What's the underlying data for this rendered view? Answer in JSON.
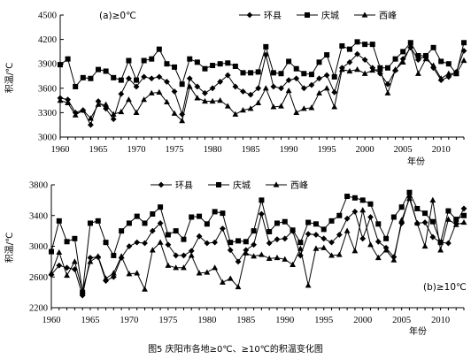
{
  "figure": {
    "caption": "图5 庆阳市各地≥0℃、≥10℃的积温变化图"
  },
  "chart_data": [
    {
      "type": "line",
      "panel_label": "(a)≥0℃",
      "ylabel": "积温/℃",
      "xlabel": "年份",
      "ylim": [
        3000,
        4500
      ],
      "yticks": [
        3000,
        3300,
        3600,
        3900,
        4200,
        4500
      ],
      "xlim": [
        1960,
        2013
      ],
      "xticks": [
        1960,
        1965,
        1970,
        1975,
        1980,
        1985,
        1990,
        1995,
        2000,
        2005,
        2010
      ],
      "legend_position": "top-right",
      "x": [
        1960,
        1961,
        1962,
        1963,
        1964,
        1965,
        1966,
        1967,
        1968,
        1969,
        1970,
        1971,
        1972,
        1973,
        1974,
        1975,
        1976,
        1977,
        1978,
        1979,
        1980,
        1981,
        1982,
        1983,
        1984,
        1985,
        1986,
        1987,
        1988,
        1989,
        1990,
        1991,
        1992,
        1993,
        1994,
        1995,
        1996,
        1997,
        1998,
        1999,
        2000,
        2001,
        2002,
        2003,
        2004,
        2005,
        2006,
        2007,
        2008,
        2009,
        2010,
        2011,
        2012,
        2013
      ],
      "series": [
        {
          "name": "环县",
          "marker": "diamond",
          "values": [
            3480,
            3460,
            3300,
            3330,
            3150,
            3440,
            3350,
            3220,
            3530,
            3720,
            3620,
            3740,
            3720,
            3740,
            3680,
            3560,
            3280,
            3720,
            3620,
            3540,
            3600,
            3680,
            3760,
            3620,
            3560,
            3520,
            3600,
            4010,
            3620,
            3600,
            3700,
            3720,
            3600,
            3640,
            3720,
            3760,
            3550,
            3850,
            3920,
            4020,
            3950,
            3850,
            3780,
            3650,
            3820,
            3960,
            4100,
            3950,
            4000,
            3850,
            3700,
            3740,
            3800,
            4060
          ]
        },
        {
          "name": "庆城",
          "marker": "square",
          "values": [
            3890,
            3960,
            3620,
            3730,
            3720,
            3830,
            3810,
            3730,
            3700,
            3940,
            3700,
            3940,
            3960,
            4080,
            3900,
            3860,
            3650,
            3960,
            3920,
            3840,
            3880,
            3900,
            3910,
            3870,
            3790,
            3790,
            3800,
            4110,
            3790,
            3780,
            3930,
            3840,
            3780,
            3770,
            3920,
            4010,
            3740,
            4120,
            4080,
            4170,
            4140,
            4140,
            3850,
            3850,
            3960,
            4050,
            4160,
            4000,
            4000,
            4100,
            3930,
            3900,
            3780,
            4160
          ]
        },
        {
          "name": "西峰",
          "marker": "triangle",
          "values": [
            3450,
            3420,
            3270,
            3330,
            3230,
            3400,
            3400,
            3280,
            3310,
            3460,
            3300,
            3460,
            3540,
            3550,
            3430,
            3290,
            3200,
            3620,
            3480,
            3440,
            3440,
            3450,
            3380,
            3280,
            3330,
            3350,
            3420,
            3600,
            3370,
            3380,
            3570,
            3300,
            3350,
            3360,
            3540,
            3600,
            3370,
            3830,
            3810,
            3830,
            3780,
            3820,
            3830,
            3540,
            3830,
            3920,
            4120,
            3780,
            3960,
            3880,
            3720,
            3780,
            3780,
            3940
          ]
        }
      ]
    },
    {
      "type": "line",
      "panel_label": "(b)≥10℃",
      "ylabel": "积温/℃",
      "xlabel": "年份",
      "ylim": [
        2200,
        3800
      ],
      "yticks": [
        2200,
        2600,
        3000,
        3400,
        3800
      ],
      "xlim": [
        1960,
        2013
      ],
      "xticks": [
        1960,
        1965,
        1970,
        1975,
        1980,
        1985,
        1990,
        1995,
        2000,
        2005,
        2010
      ],
      "legend_position": "top-left",
      "x": [
        1960,
        1961,
        1962,
        1963,
        1964,
        1965,
        1966,
        1967,
        1968,
        1969,
        1970,
        1971,
        1972,
        1973,
        1974,
        1975,
        1976,
        1977,
        1978,
        1979,
        1980,
        1981,
        1982,
        1983,
        1984,
        1985,
        1986,
        1987,
        1988,
        1989,
        1990,
        1991,
        1992,
        1993,
        1994,
        1995,
        1996,
        1997,
        1998,
        1999,
        2000,
        2001,
        2002,
        2003,
        2004,
        2005,
        2006,
        2007,
        2008,
        2009,
        2010,
        2011,
        2012,
        2013
      ],
      "series": [
        {
          "name": "环县",
          "marker": "diamond",
          "values": [
            2630,
            2750,
            2720,
            2700,
            2360,
            2850,
            2860,
            2550,
            2600,
            2850,
            3000,
            3050,
            3040,
            3200,
            3300,
            3020,
            2880,
            2880,
            2940,
            3130,
            3040,
            3050,
            3230,
            2950,
            2800,
            2950,
            3020,
            3420,
            3040,
            3090,
            3100,
            3200,
            2880,
            3160,
            3150,
            3100,
            3050,
            3150,
            3360,
            3450,
            3100,
            3380,
            3060,
            2980,
            2860,
            3300,
            3640,
            3300,
            3310,
            3120,
            3050,
            3040,
            3300,
            3490
          ]
        },
        {
          "name": "庆城",
          "marker": "square",
          "values": [
            2930,
            3330,
            3060,
            3100,
            2400,
            3300,
            3330,
            3050,
            2880,
            3200,
            3300,
            3390,
            3300,
            3420,
            3510,
            3150,
            3200,
            3090,
            3380,
            3390,
            3290,
            3450,
            3430,
            3050,
            3070,
            3060,
            3200,
            3600,
            3190,
            3300,
            3320,
            3210,
            3050,
            3310,
            3290,
            3220,
            3330,
            3400,
            3650,
            3630,
            3600,
            3550,
            3290,
            3100,
            3380,
            3510,
            3700,
            3490,
            3430,
            3320,
            3050,
            3460,
            3350,
            3400
          ]
        },
        {
          "name": "西峰",
          "marker": "triangle",
          "values": [
            2650,
            2920,
            2620,
            2800,
            2420,
            2800,
            2870,
            2580,
            2650,
            2870,
            2640,
            2650,
            2440,
            2950,
            3050,
            2750,
            2720,
            2720,
            2880,
            2650,
            2660,
            2720,
            2530,
            2580,
            2470,
            2910,
            2870,
            2890,
            2840,
            2850,
            2830,
            2760,
            2970,
            2490,
            2970,
            2980,
            2880,
            2890,
            3200,
            2940,
            3470,
            3020,
            2850,
            2950,
            2820,
            3340,
            3620,
            3300,
            3000,
            3600,
            2950,
            3350,
            3280,
            3310
          ]
        }
      ]
    }
  ]
}
